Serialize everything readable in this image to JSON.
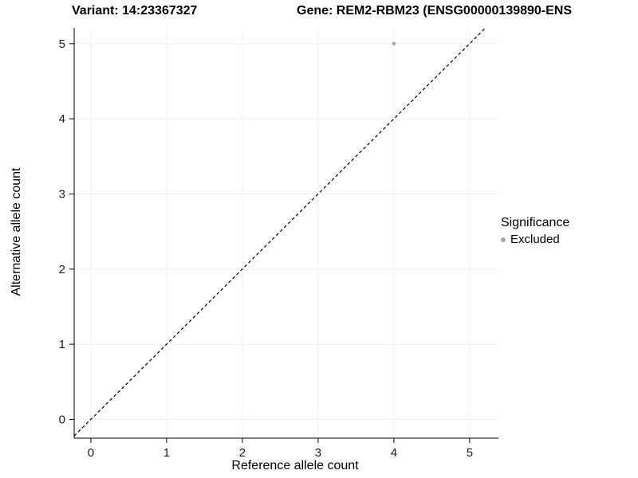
{
  "titles": {
    "left": "Variant: 14:23367327",
    "right": "Gene: REM2-RBM23 (ENSG00000139890-ENS"
  },
  "chart_data": {
    "type": "scatter",
    "xlabel": "Reference allele count",
    "ylabel": "Alternative allele count",
    "xlim": [
      -0.22,
      5.38
    ],
    "ylim": [
      -0.25,
      5.21
    ],
    "xticks": [
      0,
      1,
      2,
      3,
      4,
      5
    ],
    "yticks": [
      0,
      1,
      2,
      3,
      4,
      5
    ],
    "grid": true,
    "grid_color": "#f0f0f0",
    "axis_color": "#000000",
    "reference_line": {
      "type": "identity",
      "slope": 1,
      "intercept": 0,
      "style": "dashed",
      "color": "#000000"
    },
    "series": [
      {
        "name": "Excluded",
        "color": "#a8a8a8",
        "point_radius": 2.3,
        "points": [
          [
            4,
            5
          ]
        ]
      }
    ],
    "legend": {
      "title": "Significance",
      "position": "right",
      "entries": [
        {
          "label": "Excluded",
          "color": "#a8a8a8"
        }
      ]
    }
  }
}
